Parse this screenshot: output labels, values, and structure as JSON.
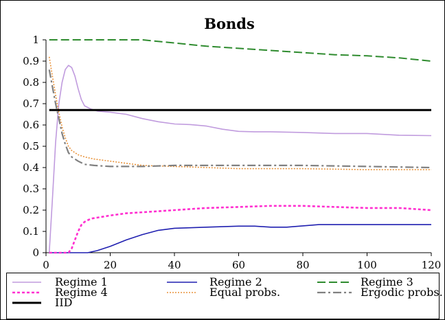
{
  "chart_data": {
    "type": "line",
    "title": "Bonds",
    "xlabel": "",
    "ylabel": "",
    "xlim": [
      0,
      120
    ],
    "ylim": [
      0,
      1
    ],
    "xticks": [
      0,
      20,
      40,
      60,
      80,
      100,
      120
    ],
    "yticks": [
      0,
      0.1,
      0.2,
      0.3,
      0.4,
      0.5,
      0.6,
      0.7,
      0.8,
      0.9,
      1
    ],
    "grid": false,
    "legend_position": "bottom",
    "series": [
      {
        "name": "Regime 1",
        "color": "#c09bde",
        "style": "solid",
        "x": [
          1,
          2,
          3,
          4,
          5,
          6,
          7,
          8,
          9,
          10,
          11,
          12,
          14,
          16,
          20,
          25,
          30,
          35,
          40,
          45,
          50,
          55,
          60,
          65,
          70,
          80,
          90,
          100,
          110,
          120
        ],
        "y": [
          0,
          0.25,
          0.52,
          0.7,
          0.8,
          0.86,
          0.88,
          0.87,
          0.83,
          0.77,
          0.72,
          0.69,
          0.675,
          0.665,
          0.66,
          0.65,
          0.63,
          0.615,
          0.605,
          0.602,
          0.595,
          0.58,
          0.57,
          0.568,
          0.568,
          0.565,
          0.56,
          0.56,
          0.552,
          0.55
        ]
      },
      {
        "name": "Regime 2",
        "color": "#1f1fb0",
        "style": "solid",
        "x": [
          1,
          5,
          10,
          13,
          16,
          20,
          25,
          30,
          35,
          40,
          50,
          60,
          65,
          70,
          75,
          85,
          100,
          120
        ],
        "y": [
          0,
          0,
          0,
          0,
          0.01,
          0.03,
          0.06,
          0.085,
          0.105,
          0.115,
          0.12,
          0.125,
          0.125,
          0.12,
          0.12,
          0.132,
          0.132,
          0.132
        ]
      },
      {
        "name": "Regime 3",
        "color": "#2e8b2e",
        "style": "dashed",
        "x": [
          1,
          10,
          20,
          30,
          40,
          50,
          60,
          70,
          80,
          90,
          100,
          110,
          120
        ],
        "y": [
          1,
          1,
          1,
          1,
          0.985,
          0.97,
          0.96,
          0.95,
          0.94,
          0.93,
          0.925,
          0.915,
          0.9
        ]
      },
      {
        "name": "Regime 4",
        "color": "#ff2fd0",
        "style": "dotted",
        "x": [
          1,
          5,
          7,
          8,
          9,
          10,
          11,
          12,
          14,
          16,
          20,
          25,
          30,
          35,
          40,
          45,
          50,
          60,
          70,
          80,
          90,
          100,
          110,
          120
        ],
        "y": [
          0,
          0,
          0,
          0.02,
          0.06,
          0.1,
          0.13,
          0.145,
          0.16,
          0.165,
          0.175,
          0.185,
          0.19,
          0.195,
          0.2,
          0.205,
          0.21,
          0.215,
          0.22,
          0.22,
          0.215,
          0.21,
          0.21,
          0.2
        ]
      },
      {
        "name": "Equal probs.",
        "color": "#e8923a",
        "style": "dotted-fine",
        "x": [
          1,
          2,
          3,
          4,
          5,
          6,
          7,
          8,
          10,
          12,
          15,
          20,
          25,
          30,
          40,
          50,
          60,
          80,
          100,
          120
        ],
        "y": [
          0.92,
          0.83,
          0.74,
          0.66,
          0.59,
          0.54,
          0.5,
          0.48,
          0.46,
          0.45,
          0.44,
          0.43,
          0.42,
          0.41,
          0.405,
          0.4,
          0.395,
          0.395,
          0.39,
          0.39
        ]
      },
      {
        "name": "Ergodic probs.",
        "color": "#808080",
        "style": "dashdot",
        "x": [
          1,
          2,
          3,
          4,
          5,
          6,
          7,
          8,
          10,
          12,
          15,
          20,
          25,
          30,
          40,
          50,
          60,
          80,
          100,
          120
        ],
        "y": [
          0.86,
          0.78,
          0.7,
          0.63,
          0.56,
          0.51,
          0.47,
          0.45,
          0.43,
          0.415,
          0.41,
          0.405,
          0.405,
          0.405,
          0.41,
          0.41,
          0.41,
          0.41,
          0.405,
          0.4
        ]
      },
      {
        "name": "IID",
        "color": "#000000",
        "style": "solid-thick",
        "x": [
          1,
          120
        ],
        "y": [
          0.67,
          0.67
        ]
      }
    ]
  }
}
